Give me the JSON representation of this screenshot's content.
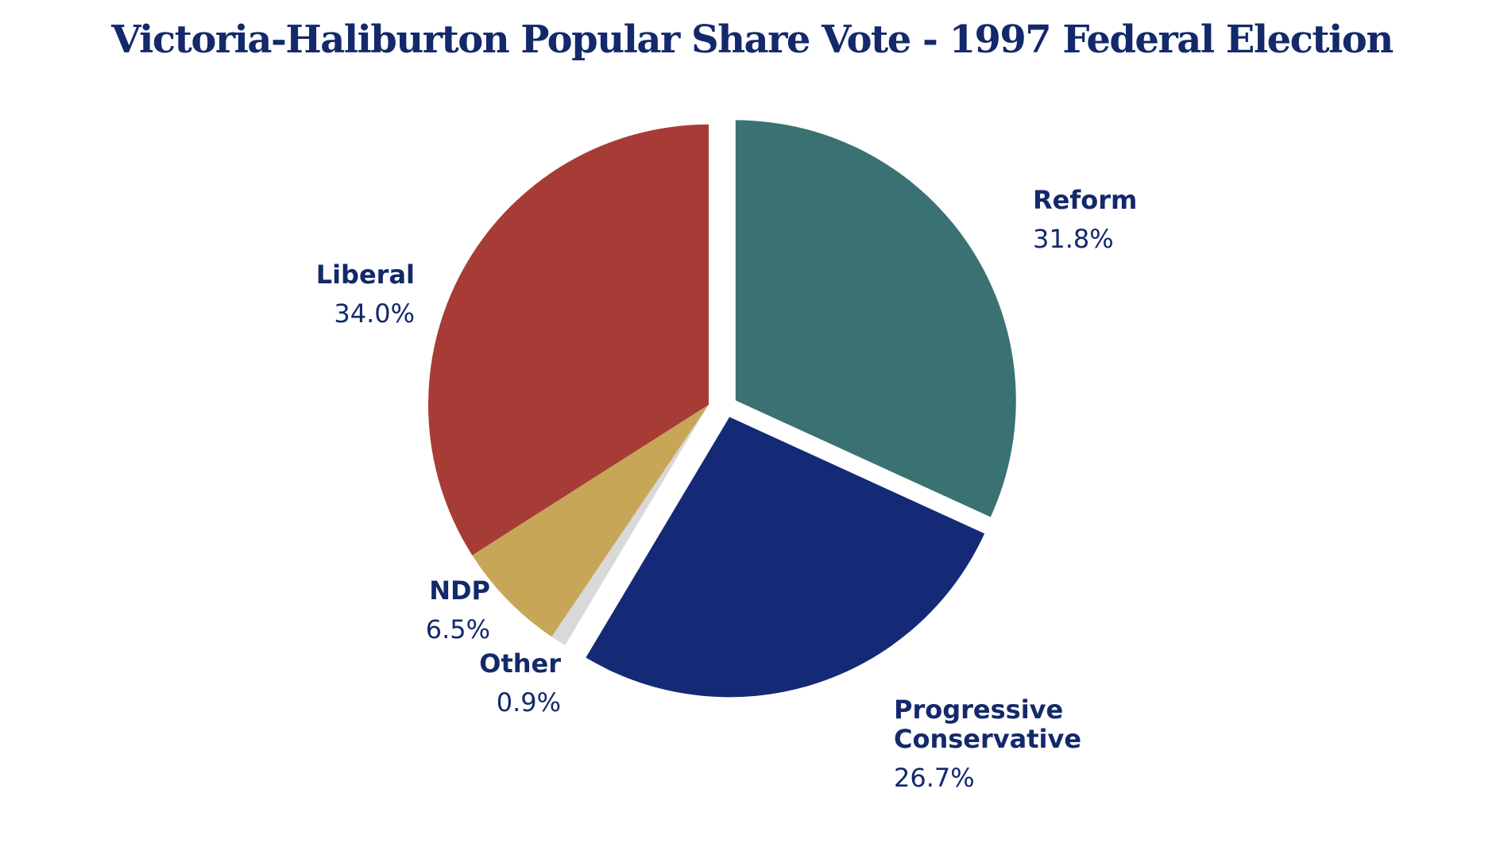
{
  "chart_data": {
    "type": "pie",
    "title": "Victoria-Haliburton Popular Share Vote - 1997 Federal Election",
    "value_unit": "%",
    "slices": [
      {
        "name_lines": [
          "Reform"
        ],
        "value": 31.8,
        "value_label": "31.8%",
        "color": "#3a7273"
      },
      {
        "name_lines": [
          "Progressive",
          "Conservative"
        ],
        "value": 26.7,
        "value_label": "26.7%",
        "color": "#142a76"
      },
      {
        "name_lines": [
          "Other"
        ],
        "value": 0.9,
        "value_label": "0.9%",
        "color": "#d9d9d9"
      },
      {
        "name_lines": [
          "NDP"
        ],
        "value": 6.5,
        "value_label": "6.5%",
        "color": "#c7a757"
      },
      {
        "name_lines": [
          "Liberal"
        ],
        "value": 34.0,
        "value_label": "34.0%",
        "color": "#a73c37"
      }
    ],
    "exploded": [
      "Reform",
      "Progressive Conservative"
    ],
    "label_color": "#13296b",
    "legend": "none"
  }
}
